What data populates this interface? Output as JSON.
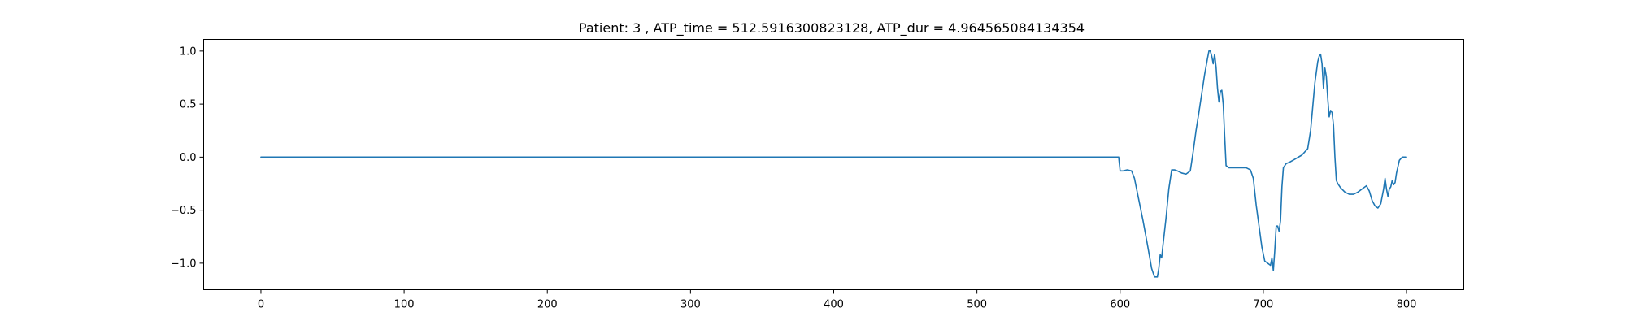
{
  "chart_data": {
    "type": "line",
    "title": "Patient: 3 , ATP_time = 512.5916300823128, ATP_dur = 4.964565084134354",
    "xlabel": "",
    "ylabel": "",
    "xlim": [
      -40,
      840
    ],
    "ylim": [
      -1.25,
      1.11
    ],
    "grid": false,
    "color": "#1f77b4",
    "x_ticks": [
      {
        "value": 0,
        "label": "0"
      },
      {
        "value": 100,
        "label": "100"
      },
      {
        "value": 200,
        "label": "200"
      },
      {
        "value": 300,
        "label": "300"
      },
      {
        "value": 400,
        "label": "400"
      },
      {
        "value": 500,
        "label": "500"
      },
      {
        "value": 600,
        "label": "600"
      },
      {
        "value": 700,
        "label": "700"
      },
      {
        "value": 800,
        "label": "800"
      }
    ],
    "y_ticks": [
      {
        "value": 1.0,
        "label": "1.0"
      },
      {
        "value": 0.5,
        "label": "0.5"
      },
      {
        "value": 0.0,
        "label": "0.0"
      },
      {
        "value": -0.5,
        "label": "−0.5"
      },
      {
        "value": -1.0,
        "label": "−1.0"
      }
    ],
    "series": [
      {
        "x": [
          0,
          100,
          200,
          300,
          400,
          500,
          598,
          599,
          600,
          602,
          605,
          608,
          610,
          613,
          616,
          619,
          622,
          624,
          626,
          627,
          628,
          629,
          630,
          631,
          632,
          634,
          636,
          638,
          640,
          643,
          646,
          649,
          651,
          653,
          655,
          657,
          659,
          661,
          662,
          663,
          664,
          665,
          666,
          667,
          668,
          669,
          670,
          671,
          672,
          673,
          674,
          676,
          680,
          684,
          688,
          691,
          693,
          695,
          697,
          699,
          701,
          703,
          705,
          706,
          707,
          708,
          709,
          710,
          711,
          712,
          713,
          714,
          715,
          716,
          718,
          722,
          727,
          731,
          733,
          735,
          736,
          737,
          738,
          739,
          740,
          741,
          742,
          743,
          744,
          745,
          746,
          747,
          748,
          749,
          750,
          751,
          752,
          754,
          757,
          760,
          763,
          766,
          769,
          772,
          774,
          776,
          778,
          780,
          782,
          784,
          785,
          786,
          787,
          788,
          789,
          790,
          791,
          792,
          793,
          795,
          797,
          799,
          800
        ],
        "y": [
          0,
          0,
          0,
          0,
          0,
          0,
          0,
          0,
          -0.13,
          -0.13,
          -0.12,
          -0.13,
          -0.2,
          -0.4,
          -0.6,
          -0.82,
          -1.05,
          -1.13,
          -1.13,
          -1.05,
          -0.92,
          -0.95,
          -0.82,
          -0.7,
          -0.58,
          -0.3,
          -0.12,
          -0.12,
          -0.13,
          -0.15,
          -0.16,
          -0.13,
          0.05,
          0.25,
          0.42,
          0.6,
          0.78,
          0.93,
          1.0,
          1.0,
          0.95,
          0.88,
          0.97,
          0.85,
          0.65,
          0.52,
          0.62,
          0.63,
          0.5,
          0.2,
          -0.08,
          -0.1,
          -0.1,
          -0.1,
          -0.1,
          -0.12,
          -0.2,
          -0.45,
          -0.65,
          -0.85,
          -0.98,
          -1.0,
          -1.02,
          -0.95,
          -1.07,
          -0.88,
          -0.65,
          -0.65,
          -0.7,
          -0.6,
          -0.28,
          -0.1,
          -0.08,
          -0.06,
          -0.05,
          -0.02,
          0.02,
          0.08,
          0.25,
          0.55,
          0.7,
          0.8,
          0.9,
          0.95,
          0.97,
          0.88,
          0.65,
          0.84,
          0.76,
          0.55,
          0.38,
          0.44,
          0.42,
          0.3,
          0.0,
          -0.22,
          -0.25,
          -0.29,
          -0.33,
          -0.35,
          -0.35,
          -0.33,
          -0.3,
          -0.27,
          -0.32,
          -0.41,
          -0.46,
          -0.48,
          -0.44,
          -0.3,
          -0.2,
          -0.3,
          -0.37,
          -0.3,
          -0.28,
          -0.22,
          -0.26,
          -0.24,
          -0.15,
          -0.03,
          0.0,
          0.0,
          0.0
        ]
      }
    ]
  }
}
